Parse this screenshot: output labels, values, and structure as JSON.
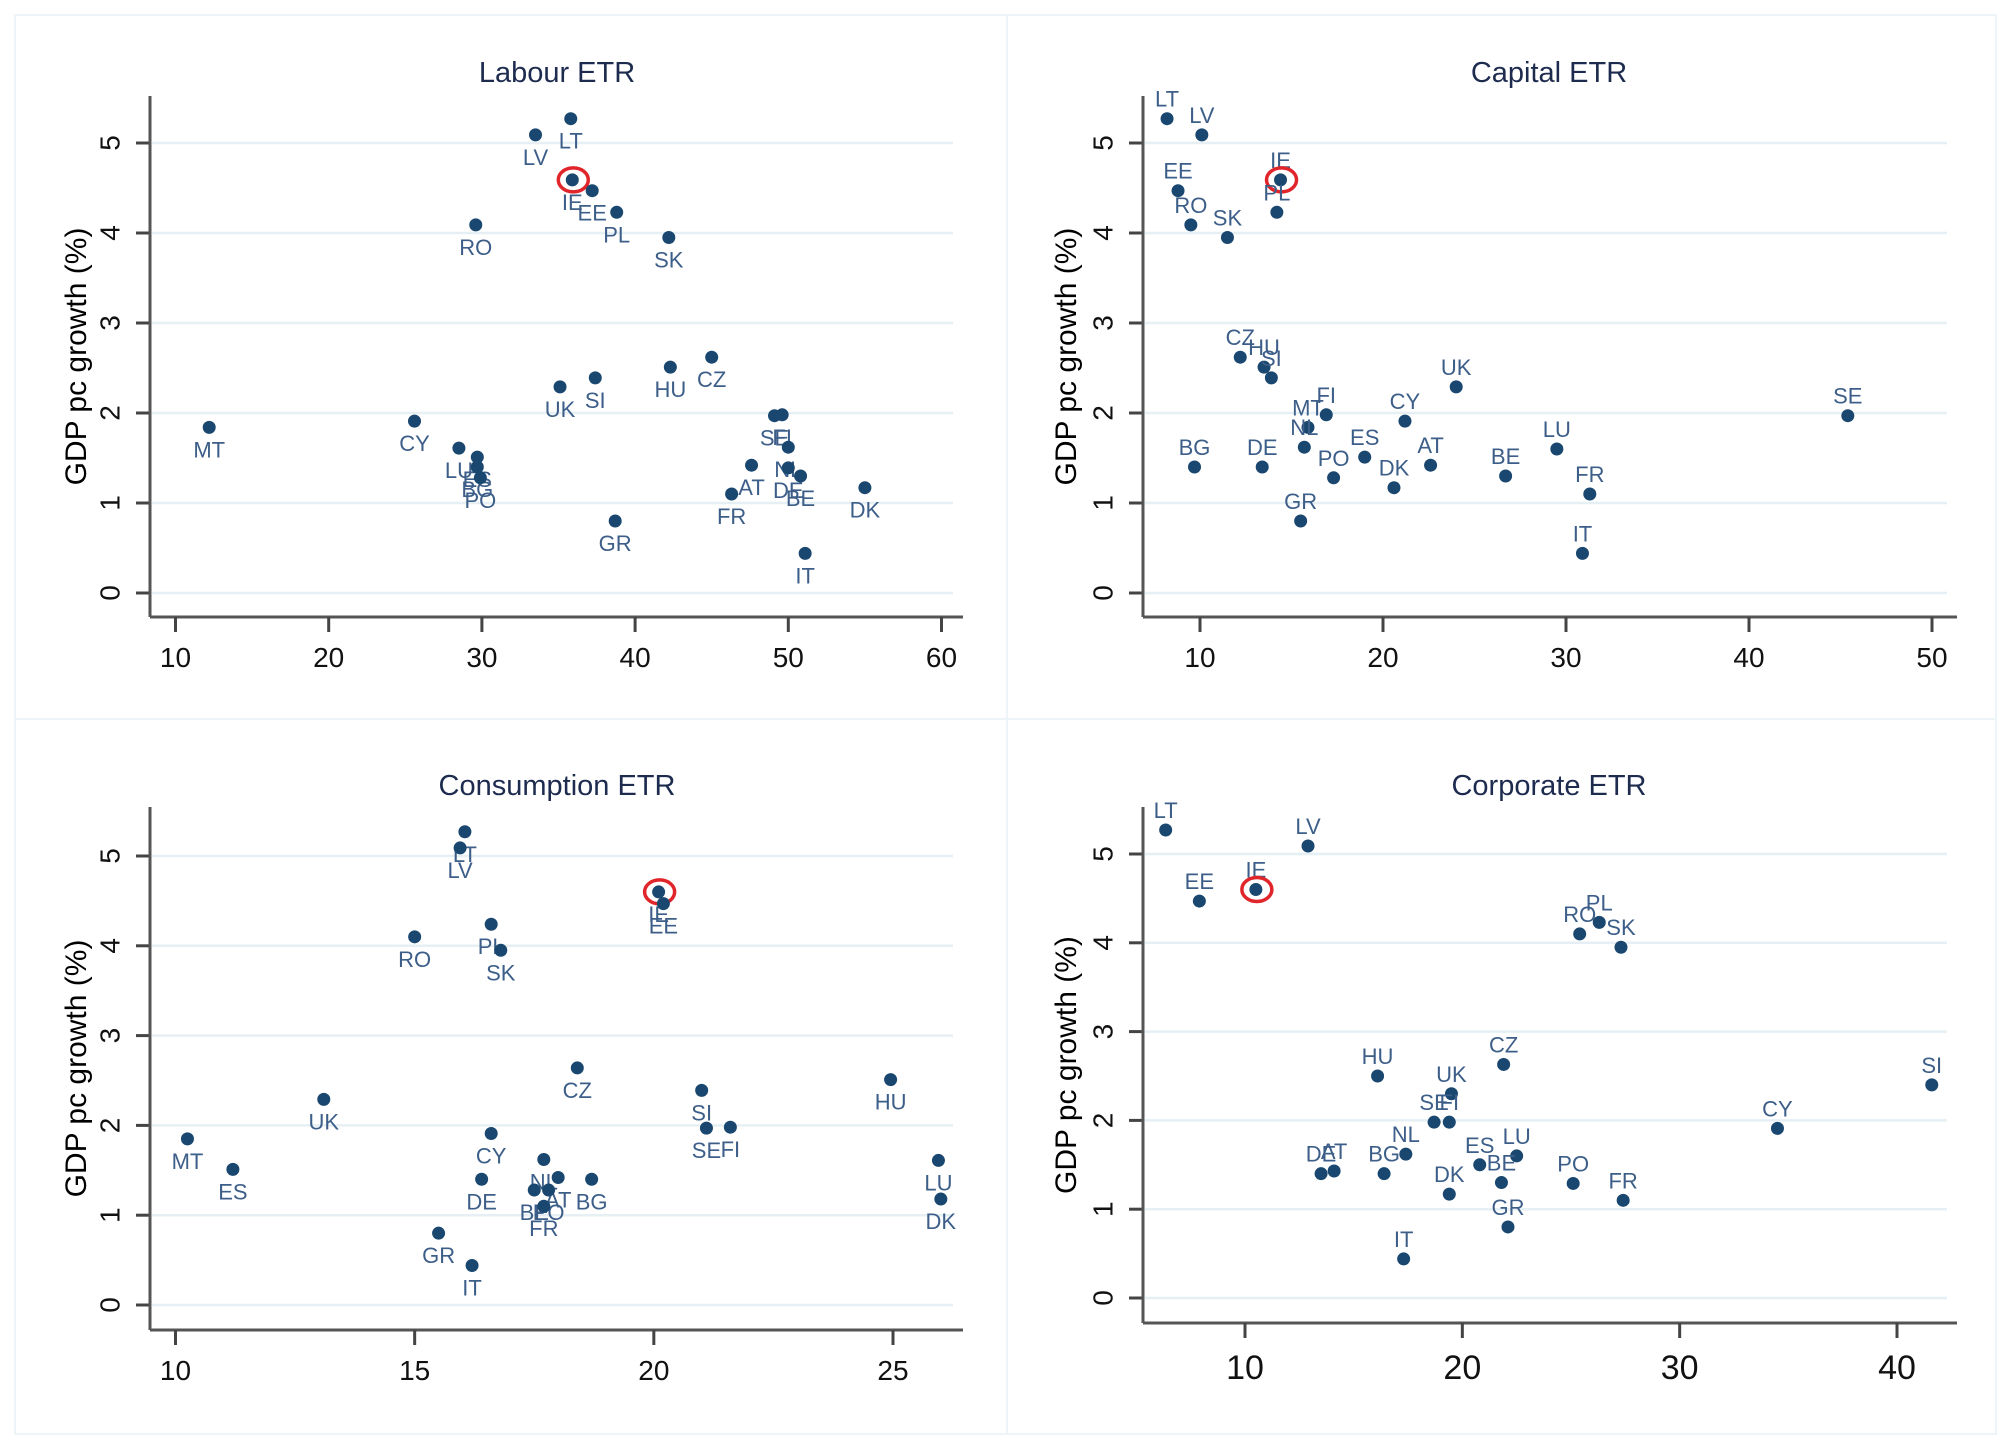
{
  "chart_data": [
    {
      "type": "scatter",
      "title": "Labour ETR",
      "xlabel": "",
      "ylabel": "GDP pc growth (%)",
      "xlim": [
        8.5,
        61.8
      ],
      "ylim": [
        -0.3,
        5.5
      ],
      "xticks": [
        "10",
        "20",
        "30",
        "40",
        "50",
        "60"
      ],
      "xtick_values": [
        10,
        20,
        30,
        40,
        50,
        60
      ],
      "yticks": [
        "0",
        "1",
        "2",
        "3",
        "4",
        "5"
      ],
      "ytick_values": [
        0,
        1,
        2,
        3,
        4,
        5
      ],
      "grid": "horizontal",
      "label_position": "below",
      "highlight": "IE",
      "points": [
        {
          "label": "LT",
          "x": 35.8,
          "y": 5.27
        },
        {
          "label": "LV",
          "x": 33.5,
          "y": 5.09
        },
        {
          "label": "IE",
          "x": 35.9,
          "y": 4.59
        },
        {
          "label": "EE",
          "x": 37.2,
          "y": 4.47
        },
        {
          "label": "PL",
          "x": 38.8,
          "y": 4.23
        },
        {
          "label": "RO",
          "x": 29.6,
          "y": 4.09
        },
        {
          "label": "SK",
          "x": 42.2,
          "y": 3.95
        },
        {
          "label": "CZ",
          "x": 45.0,
          "y": 2.62
        },
        {
          "label": "HU",
          "x": 42.3,
          "y": 2.51
        },
        {
          "label": "SI",
          "x": 37.4,
          "y": 2.39
        },
        {
          "label": "UK",
          "x": 35.1,
          "y": 2.29
        },
        {
          "label": "SE",
          "x": 49.1,
          "y": 1.97
        },
        {
          "label": "FI",
          "x": 49.6,
          "y": 1.98
        },
        {
          "label": "NL",
          "x": 50.0,
          "y": 1.62
        },
        {
          "label": "AT",
          "x": 47.6,
          "y": 1.42
        },
        {
          "label": "DE",
          "x": 50.0,
          "y": 1.39
        },
        {
          "label": "BE",
          "x": 50.8,
          "y": 1.3
        },
        {
          "label": "FR",
          "x": 46.3,
          "y": 1.1
        },
        {
          "label": "DK",
          "x": 55.0,
          "y": 1.17
        },
        {
          "label": "GR",
          "x": 38.7,
          "y": 0.8
        },
        {
          "label": "IT",
          "x": 51.1,
          "y": 0.44
        },
        {
          "label": "MT",
          "x": 12.2,
          "y": 1.84
        },
        {
          "label": "CY",
          "x": 25.6,
          "y": 1.91
        },
        {
          "label": "LU",
          "x": 28.5,
          "y": 1.61
        },
        {
          "label": "ES",
          "x": 29.7,
          "y": 1.51
        },
        {
          "label": "BG",
          "x": 29.7,
          "y": 1.4
        },
        {
          "label": "PO",
          "x": 29.9,
          "y": 1.28
        }
      ]
    },
    {
      "type": "scatter",
      "title": "Capital ETR",
      "xlabel": "",
      "ylabel": "GDP pc growth (%)",
      "xlim": [
        7.0,
        51.5
      ],
      "ylim": [
        -0.3,
        5.5
      ],
      "xticks": [
        "10",
        "20",
        "30",
        "40",
        "50"
      ],
      "xtick_values": [
        10,
        20,
        30,
        40,
        50
      ],
      "yticks": [
        "0",
        "1",
        "2",
        "3",
        "4",
        "5"
      ],
      "ytick_values": [
        0,
        1,
        2,
        3,
        4,
        5
      ],
      "grid": "horizontal",
      "label_position": "above",
      "highlight": "IE",
      "points": [
        {
          "label": "LT",
          "x": 8.2,
          "y": 5.27
        },
        {
          "label": "LV",
          "x": 10.1,
          "y": 5.09
        },
        {
          "label": "EE",
          "x": 8.8,
          "y": 4.47
        },
        {
          "label": "IE",
          "x": 14.4,
          "y": 4.59
        },
        {
          "label": "PL",
          "x": 14.2,
          "y": 4.23
        },
        {
          "label": "RO",
          "x": 9.5,
          "y": 4.09
        },
        {
          "label": "SK",
          "x": 11.5,
          "y": 3.95
        },
        {
          "label": "CZ",
          "x": 12.2,
          "y": 2.62
        },
        {
          "label": "HU",
          "x": 13.5,
          "y": 2.51
        },
        {
          "label": "SI",
          "x": 13.9,
          "y": 2.39
        },
        {
          "label": "UK",
          "x": 24.0,
          "y": 2.29
        },
        {
          "label": "FI",
          "x": 16.9,
          "y": 1.98
        },
        {
          "label": "MT",
          "x": 15.9,
          "y": 1.84
        },
        {
          "label": "CY",
          "x": 21.2,
          "y": 1.91
        },
        {
          "label": "NL",
          "x": 15.7,
          "y": 1.62
        },
        {
          "label": "LU",
          "x": 29.5,
          "y": 1.6
        },
        {
          "label": "SE",
          "x": 45.4,
          "y": 1.97
        },
        {
          "label": "BG",
          "x": 9.7,
          "y": 1.4
        },
        {
          "label": "DE",
          "x": 13.4,
          "y": 1.4
        },
        {
          "label": "ES",
          "x": 19.0,
          "y": 1.51
        },
        {
          "label": "AT",
          "x": 22.6,
          "y": 1.42
        },
        {
          "label": "PO",
          "x": 17.3,
          "y": 1.28
        },
        {
          "label": "BE",
          "x": 26.7,
          "y": 1.3
        },
        {
          "label": "DK",
          "x": 20.6,
          "y": 1.17
        },
        {
          "label": "FR",
          "x": 31.3,
          "y": 1.1
        },
        {
          "label": "GR",
          "x": 15.5,
          "y": 0.8
        },
        {
          "label": "IT",
          "x": 30.9,
          "y": 0.44
        }
      ]
    },
    {
      "type": "scatter",
      "title": "Consumption ETR",
      "xlabel": "",
      "ylabel": "GDP pc growth (%)",
      "xlim": [
        9.5,
        26.4
      ],
      "ylim": [
        -0.3,
        5.5
      ],
      "xticks": [
        "10",
        "15",
        "20",
        "25"
      ],
      "xtick_values": [
        10,
        15,
        20,
        25
      ],
      "yticks": [
        "0",
        "1",
        "2",
        "3",
        "4",
        "5"
      ],
      "ytick_values": [
        0,
        1,
        2,
        3,
        4,
        5
      ],
      "grid": "horizontal",
      "label_position": "below",
      "highlight": "IE",
      "points": [
        {
          "label": "LT",
          "x": 16.05,
          "y": 5.27
        },
        {
          "label": "LV",
          "x": 15.95,
          "y": 5.09
        },
        {
          "label": "IE",
          "x": 20.1,
          "y": 4.6
        },
        {
          "label": "EE",
          "x": 20.2,
          "y": 4.47
        },
        {
          "label": "PL",
          "x": 16.6,
          "y": 4.24
        },
        {
          "label": "SK",
          "x": 16.8,
          "y": 3.95
        },
        {
          "label": "RO",
          "x": 15.0,
          "y": 4.1
        },
        {
          "label": "CZ",
          "x": 18.4,
          "y": 2.64
        },
        {
          "label": "HU",
          "x": 24.95,
          "y": 2.51
        },
        {
          "label": "SI",
          "x": 21.0,
          "y": 2.39
        },
        {
          "label": "UK",
          "x": 13.1,
          "y": 2.29
        },
        {
          "label": "SE",
          "x": 21.1,
          "y": 1.97
        },
        {
          "label": "FI",
          "x": 21.6,
          "y": 1.98
        },
        {
          "label": "MT",
          "x": 10.25,
          "y": 1.85
        },
        {
          "label": "CY",
          "x": 16.6,
          "y": 1.91
        },
        {
          "label": "LU",
          "x": 25.95,
          "y": 1.61
        },
        {
          "label": "ES",
          "x": 11.2,
          "y": 1.51
        },
        {
          "label": "NL",
          "x": 17.7,
          "y": 1.62
        },
        {
          "label": "AT",
          "x": 18.0,
          "y": 1.42
        },
        {
          "label": "BG",
          "x": 18.7,
          "y": 1.4
        },
        {
          "label": "DE",
          "x": 16.4,
          "y": 1.4
        },
        {
          "label": "BE",
          "x": 17.5,
          "y": 1.28
        },
        {
          "label": "PO",
          "x": 17.8,
          "y": 1.28
        },
        {
          "label": "FR",
          "x": 17.7,
          "y": 1.1
        },
        {
          "label": "DK",
          "x": 26.0,
          "y": 1.18
        },
        {
          "label": "GR",
          "x": 15.5,
          "y": 0.8
        },
        {
          "label": "IT",
          "x": 16.2,
          "y": 0.44
        }
      ]
    },
    {
      "type": "scatter",
      "title": "Corporate ETR",
      "xlabel": "",
      "ylabel": "GDP pc growth (%)",
      "xlim": [
        5.0,
        42.8
      ],
      "ylim": [
        -0.3,
        5.5
      ],
      "xticks": [
        "10",
        "20",
        "30",
        "40"
      ],
      "xtick_values": [
        10,
        20,
        30,
        40
      ],
      "yticks": [
        "0",
        "1",
        "2",
        "3",
        "4",
        "5"
      ],
      "ytick_values": [
        0,
        1,
        2,
        3,
        4,
        5
      ],
      "grid": "horizontal",
      "label_position": "above",
      "highlight": "IE",
      "points": [
        {
          "label": "LT",
          "x": 6.35,
          "y": 5.27
        },
        {
          "label": "LV",
          "x": 12.9,
          "y": 5.09
        },
        {
          "label": "IE",
          "x": 10.5,
          "y": 4.6
        },
        {
          "label": "EE",
          "x": 7.9,
          "y": 4.47
        },
        {
          "label": "PL",
          "x": 26.3,
          "y": 4.23
        },
        {
          "label": "RO",
          "x": 25.4,
          "y": 4.1
        },
        {
          "label": "SK",
          "x": 27.3,
          "y": 3.95
        },
        {
          "label": "CZ",
          "x": 21.9,
          "y": 2.63
        },
        {
          "label": "HU",
          "x": 16.1,
          "y": 2.5
        },
        {
          "label": "UK",
          "x": 19.5,
          "y": 2.3
        },
        {
          "label": "SI",
          "x": 41.6,
          "y": 2.4
        },
        {
          "label": "SE",
          "x": 18.7,
          "y": 1.98
        },
        {
          "label": "FI",
          "x": 19.4,
          "y": 1.98
        },
        {
          "label": "CY",
          "x": 34.5,
          "y": 1.91
        },
        {
          "label": "NL",
          "x": 17.4,
          "y": 1.62
        },
        {
          "label": "LU",
          "x": 22.5,
          "y": 1.6
        },
        {
          "label": "ES",
          "x": 20.8,
          "y": 1.5
        },
        {
          "label": "AT",
          "x": 14.1,
          "y": 1.43
        },
        {
          "label": "DE",
          "x": 13.5,
          "y": 1.4
        },
        {
          "label": "BG",
          "x": 16.4,
          "y": 1.4
        },
        {
          "label": "BE",
          "x": 21.8,
          "y": 1.3
        },
        {
          "label": "PO",
          "x": 25.1,
          "y": 1.29
        },
        {
          "label": "DK",
          "x": 19.4,
          "y": 1.17
        },
        {
          "label": "FR",
          "x": 27.4,
          "y": 1.1
        },
        {
          "label": "GR",
          "x": 22.1,
          "y": 0.8
        },
        {
          "label": "IT",
          "x": 17.3,
          "y": 0.44
        }
      ]
    }
  ],
  "colors": {
    "point": "#1a476f",
    "label": "#3c5e88",
    "highlight_ring": "#e0262b",
    "title": "#1d2b4f",
    "grid": "#e6f0f4"
  }
}
